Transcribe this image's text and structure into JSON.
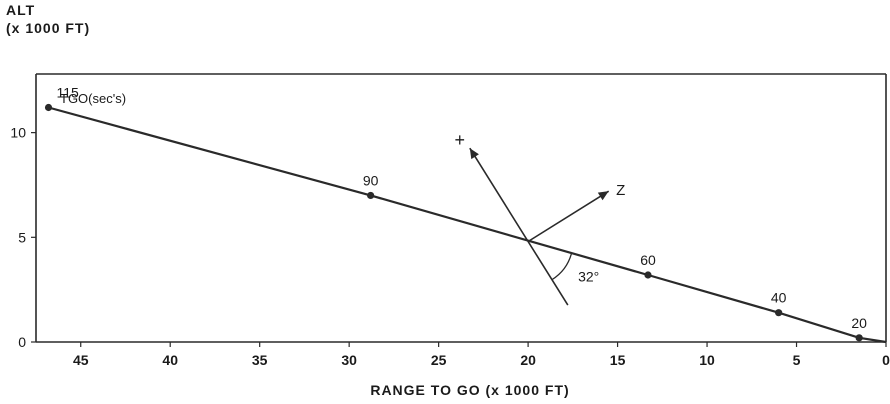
{
  "chart_data": {
    "type": "line",
    "title": "",
    "ylabel_line1": "ALT",
    "ylabel_line2": "(x 1000 FT)",
    "xlabel": "RANGE TO GO  (x 1000 FT)",
    "xlim": [
      47.5,
      0
    ],
    "ylim": [
      0,
      12.8
    ],
    "x_ticks": [
      {
        "value": 45,
        "label": "45"
      },
      {
        "value": 40,
        "label": "40"
      },
      {
        "value": 35,
        "label": "35"
      },
      {
        "value": 30,
        "label": "30"
      },
      {
        "value": 25,
        "label": "25"
      },
      {
        "value": 20,
        "label": "20"
      },
      {
        "value": 15,
        "label": "15"
      },
      {
        "value": 10,
        "label": "10"
      },
      {
        "value": 5,
        "label": "5"
      },
      {
        "value": 0,
        "label": "0"
      }
    ],
    "y_ticks": [
      {
        "value": 0,
        "label": "0"
      },
      {
        "value": 5,
        "label": "5"
      },
      {
        "value": 10,
        "label": "10"
      }
    ],
    "grid": false,
    "legend": "none",
    "series_label": "TGO(sec's)",
    "series": [
      {
        "points": [
          {
            "x": 46.8,
            "y": 11.2,
            "label": "115"
          },
          {
            "x": 28.8,
            "y": 7.0,
            "label": "90"
          },
          {
            "x": 13.3,
            "y": 3.2,
            "label": "60"
          },
          {
            "x": 6.0,
            "y": 1.4,
            "label": "40"
          },
          {
            "x": 1.5,
            "y": 0.2,
            "label": "20"
          },
          {
            "x": 0,
            "y": 0,
            "label": ""
          }
        ]
      }
    ],
    "annotations": {
      "x_axis_label": "+",
      "z_axis_label": "Z",
      "angle_label": "32°",
      "origin": {
        "x": 20,
        "y": 4.8
      }
    },
    "line_color": "#2a2a2a"
  }
}
